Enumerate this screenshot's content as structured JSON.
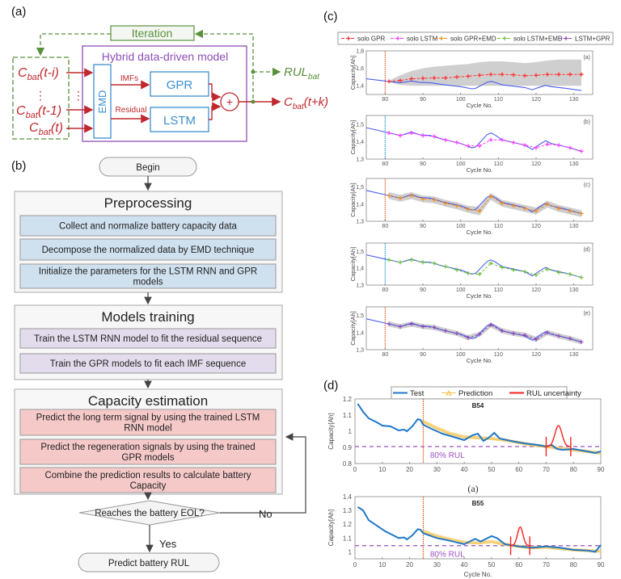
{
  "panel_labels": {
    "a": "(a)",
    "b": "(b)",
    "c": "(c)",
    "d": "(d)"
  },
  "diagram_a": {
    "iteration": "Iteration",
    "model_title": "Hybrid data-driven model",
    "inputs": [
      {
        "base": "C",
        "sub": "bat",
        "arg": "(t-i)"
      },
      {
        "base": "C",
        "sub": "bat",
        "arg": "(t-1)"
      },
      {
        "base": "C",
        "sub": "bat",
        "arg": "(t)"
      }
    ],
    "ellipsis": "⋮",
    "emd": "EMD",
    "imfs": "IMFs",
    "residual": "Residual",
    "gpr": "GPR",
    "lstm": "LSTM",
    "plus": "+",
    "rul_output": {
      "base": "RUL",
      "sub": "bat"
    },
    "capacity_output": {
      "base": "C",
      "sub": "bat",
      "arg": "(t+k)"
    },
    "colors": {
      "green": "#5a8f3c",
      "purple": "#8e4fb5",
      "blue": "#3b8fd0",
      "red": "#c0282d"
    }
  },
  "flowchart_b": {
    "begin": "Begin",
    "sections": [
      {
        "title": "Preprocessing",
        "color": "#cfe0ee",
        "steps": [
          [
            "Collect and normalize battery capacity data"
          ],
          [
            "Decompose the normalized data by EMD technique"
          ],
          [
            "Initialize the parameters for the LSTM RNN and GPR",
            "models"
          ]
        ]
      },
      {
        "title": "Models training",
        "color": "#e2dcec",
        "steps": [
          [
            "Train the LSTM RNN model to fit the residual sequence"
          ],
          [
            "Train the GPR models to fit each IMF sequence"
          ]
        ]
      },
      {
        "title": "Capacity estimation",
        "color": "#f6c9c9",
        "steps": [
          [
            "Predict the long term signal by using the trained LSTM",
            "RNN model"
          ],
          [
            "Predict the regeneration signals by using the trained",
            "GPR models"
          ],
          [
            "Combine the prediction results to calculate battery",
            "Capacity"
          ]
        ]
      }
    ],
    "decision": "Reaches the battery EOL?",
    "no": "No",
    "yes": "Yes",
    "end": "Predict battery RUL"
  },
  "chart_data": [
    {
      "type": "line",
      "id": "c",
      "legend": [
        {
          "name": "solo GPR",
          "color": "#ff2a2a"
        },
        {
          "name": "solo LSTM",
          "color": "#ff33ff"
        },
        {
          "name": "solo GPR+EMD",
          "color": "#f08a1c"
        },
        {
          "name": "solo LSTM+EMD",
          "color": "#6dbf3a"
        },
        {
          "name": "LSTM+GPR",
          "color": "#8a44b8"
        }
      ],
      "legend_position": "top",
      "xlabel": "Cycle No.",
      "ylabel": "Capacity[Ah]",
      "xlim": [
        75,
        135
      ],
      "xticks": [
        "80",
        "90",
        "100",
        "110",
        "120",
        "130"
      ],
      "start_cycle": 80,
      "test_color": "#4a5cf0",
      "test": {
        "x": [
          75,
          80,
          84,
          87,
          89,
          92,
          95,
          100,
          103,
          104,
          107,
          108,
          109,
          111,
          115,
          117,
          119,
          121,
          122.5,
          124,
          128,
          132
        ],
        "y": [
          1.48,
          1.455,
          1.435,
          1.455,
          1.44,
          1.435,
          1.415,
          1.39,
          1.365,
          1.37,
          1.44,
          1.45,
          1.44,
          1.41,
          1.39,
          1.38,
          1.355,
          1.385,
          1.405,
          1.39,
          1.37,
          1.345
        ]
      },
      "pred_x": [
        81,
        84,
        87,
        90,
        93,
        96,
        99,
        102,
        105,
        108,
        111,
        114,
        117,
        120,
        123,
        126,
        129,
        132
      ],
      "panels": [
        {
          "tag": "(a)",
          "ylim": [
            1.3,
            1.8
          ],
          "yticks": [
            "1,4",
            "1,6",
            "1,8"
          ],
          "ytick_values": [
            1.4,
            1.6,
            1.8
          ],
          "series": 0,
          "start_line_color": "#e8602a",
          "y": [
            1.45,
            1.46,
            1.48,
            1.485,
            1.49,
            1.49,
            1.5,
            1.51,
            1.52,
            1.53,
            1.53,
            1.525,
            1.515,
            1.52,
            1.53,
            1.53,
            1.53,
            1.53
          ],
          "upper": [
            1.46,
            1.52,
            1.57,
            1.6,
            1.62,
            1.63,
            1.64,
            1.65,
            1.67,
            1.68,
            1.68,
            1.67,
            1.66,
            1.67,
            1.69,
            1.7,
            1.7,
            1.7
          ],
          "lower": [
            1.44,
            1.41,
            1.4,
            1.4,
            1.4,
            1.4,
            1.4,
            1.4,
            1.4,
            1.4,
            1.4,
            1.4,
            1.4,
            1.4,
            1.4,
            1.4,
            1.4,
            1.4
          ]
        },
        {
          "tag": "(b)",
          "ylim": [
            1.3,
            1.55
          ],
          "yticks": [
            "1,3",
            "1,4",
            "1,5"
          ],
          "ytick_values": [
            1.3,
            1.4,
            1.5
          ],
          "series": 1,
          "start_line_color": "#2a9ad8",
          "y": [
            1.45,
            1.435,
            1.45,
            1.435,
            1.43,
            1.41,
            1.395,
            1.375,
            1.375,
            1.41,
            1.41,
            1.395,
            1.38,
            1.365,
            1.385,
            1.38,
            1.365,
            1.345
          ]
        },
        {
          "tag": "(c)",
          "ylim": [
            1.3,
            1.55
          ],
          "yticks": [
            "1,3",
            "1,4",
            "1,5"
          ],
          "ytick_values": [
            1.3,
            1.4,
            1.5
          ],
          "series": 2,
          "start_line_color": "#e8602a",
          "y": [
            1.45,
            1.435,
            1.45,
            1.43,
            1.425,
            1.405,
            1.39,
            1.37,
            1.36,
            1.445,
            1.405,
            1.39,
            1.375,
            1.36,
            1.4,
            1.375,
            1.36,
            1.345
          ],
          "upper": [
            1.47,
            1.455,
            1.47,
            1.45,
            1.445,
            1.425,
            1.41,
            1.39,
            1.385,
            1.465,
            1.425,
            1.41,
            1.395,
            1.38,
            1.42,
            1.395,
            1.38,
            1.365
          ],
          "lower": [
            1.43,
            1.415,
            1.43,
            1.41,
            1.405,
            1.385,
            1.37,
            1.35,
            1.335,
            1.425,
            1.385,
            1.37,
            1.355,
            1.34,
            1.38,
            1.355,
            1.34,
            1.325
          ]
        },
        {
          "tag": "(d)",
          "ylim": [
            1.3,
            1.55
          ],
          "yticks": [
            "1,3",
            "1,4",
            "1,5"
          ],
          "ytick_values": [
            1.3,
            1.4,
            1.5
          ],
          "series": 3,
          "start_line_color": "#2a9ad8",
          "y": [
            1.45,
            1.435,
            1.45,
            1.435,
            1.43,
            1.41,
            1.39,
            1.37,
            1.365,
            1.43,
            1.405,
            1.39,
            1.38,
            1.36,
            1.395,
            1.375,
            1.365,
            1.345
          ]
        },
        {
          "tag": "(e)",
          "ylim": [
            1.3,
            1.55
          ],
          "yticks": [
            "1,3",
            "1,4",
            "1,5"
          ],
          "ytick_values": [
            1.3,
            1.4,
            1.5
          ],
          "series": 4,
          "start_line_color": "#e8602a",
          "y": [
            1.45,
            1.435,
            1.45,
            1.435,
            1.43,
            1.41,
            1.395,
            1.37,
            1.39,
            1.445,
            1.41,
            1.395,
            1.385,
            1.36,
            1.4,
            1.38,
            1.365,
            1.345
          ],
          "upper": [
            1.465,
            1.45,
            1.465,
            1.45,
            1.445,
            1.425,
            1.41,
            1.385,
            1.405,
            1.46,
            1.425,
            1.41,
            1.4,
            1.375,
            1.415,
            1.395,
            1.38,
            1.36
          ],
          "lower": [
            1.435,
            1.42,
            1.435,
            1.42,
            1.415,
            1.395,
            1.38,
            1.355,
            1.375,
            1.43,
            1.395,
            1.38,
            1.37,
            1.345,
            1.385,
            1.365,
            1.35,
            1.33
          ]
        }
      ]
    },
    {
      "type": "line",
      "id": "d",
      "legend": [
        {
          "name": "Test",
          "color": "#1f77c8"
        },
        {
          "name": "Prediction",
          "color": "#f3c24f"
        },
        {
          "name": "RUL uncertainty",
          "color": "#ff2020"
        }
      ],
      "legend_position": "top",
      "xlabel": "Cycle No.",
      "ylabel": "Capacity[Ah]",
      "xlim": [
        0,
        90
      ],
      "xticks": [
        "0",
        "10",
        "20",
        "30",
        "40",
        "50",
        "60",
        "70",
        "80",
        "90"
      ],
      "start_cycle": 25,
      "threshold_label": "80% RUL",
      "threshold_color": "#9a4fc0",
      "caption": "(a)",
      "panels": [
        {
          "title": "B54",
          "ylim": [
            0.8,
            1.2
          ],
          "yticks": [
            "0.8",
            "0.9",
            "1",
            "1.1",
            "1.2"
          ],
          "ytick_values": [
            0.8,
            0.9,
            1.0,
            1.1,
            1.2
          ],
          "threshold": 0.905,
          "test": {
            "x": [
              1,
              3,
              5,
              8,
              10,
              13,
              16,
              18,
              19,
              21,
              23,
              24,
              25,
              28,
              32,
              36,
              40,
              43,
              45,
              47,
              49,
              51,
              53,
              57,
              62,
              67,
              70,
              72,
              74,
              76,
              80,
              85,
              88,
              90
            ],
            "y": [
              1.17,
              1.12,
              1.08,
              1.055,
              1.035,
              1.03,
              1.005,
              1.01,
              1.0,
              1.03,
              1.075,
              1.07,
              1.04,
              1.015,
              0.985,
              0.965,
              0.945,
              0.975,
              0.985,
              0.94,
              0.96,
              0.99,
              0.955,
              0.94,
              0.925,
              0.915,
              0.905,
              0.915,
              0.89,
              0.885,
              0.89,
              0.875,
              0.865,
              0.875
            ]
          },
          "prediction": {
            "x": [
              25,
              30,
              35,
              40,
              45,
              50,
              55,
              60,
              65,
              70,
              75,
              80,
              85,
              90
            ],
            "y": [
              1.06,
              1.02,
              0.985,
              0.965,
              0.96,
              0.955,
              0.945,
              0.93,
              0.915,
              0.905,
              0.895,
              0.885,
              0.875,
              0.865
            ]
          },
          "rul": {
            "center": 74.5,
            "peak": 1.035,
            "lower_cycle": 70,
            "upper_cycle": 79
          }
        },
        {
          "title": "B55",
          "ylim": [
            0.95,
            1.4
          ],
          "yticks": [
            "1",
            "1.1",
            "1.2",
            "1.3",
            "1.4"
          ],
          "ytick_values": [
            1.0,
            1.1,
            1.2,
            1.3,
            1.4
          ],
          "threshold": 1.045,
          "test": {
            "x": [
              1,
              3,
              5,
              8,
              11,
              14,
              16,
              18,
              19,
              21,
              23,
              24,
              25,
              30,
              35,
              40,
              44,
              46,
              50,
              52,
              55,
              60,
              65,
              70,
              75,
              80,
              85,
              88,
              90
            ],
            "y": [
              1.325,
              1.3,
              1.23,
              1.19,
              1.15,
              1.12,
              1.1,
              1.105,
              1.09,
              1.12,
              1.165,
              1.16,
              1.135,
              1.1,
              1.08,
              1.055,
              1.095,
              1.075,
              1.115,
              1.1,
              1.055,
              1.04,
              1.03,
              1.04,
              1.03,
              1.015,
              1.01,
              1.0,
              1.05
            ]
          },
          "prediction": {
            "x": [
              25,
              30,
              35,
              40,
              45,
              50,
              55,
              60,
              65,
              70,
              75,
              80,
              85,
              90
            ],
            "y": [
              1.15,
              1.115,
              1.09,
              1.07,
              1.065,
              1.075,
              1.055,
              1.04,
              1.03,
              1.035,
              1.025,
              1.015,
              1.01,
              1.005
            ]
          },
          "rul": {
            "center": 60.5,
            "peak": 1.18,
            "lower_cycle": 57,
            "upper_cycle": 64
          }
        }
      ]
    }
  ]
}
